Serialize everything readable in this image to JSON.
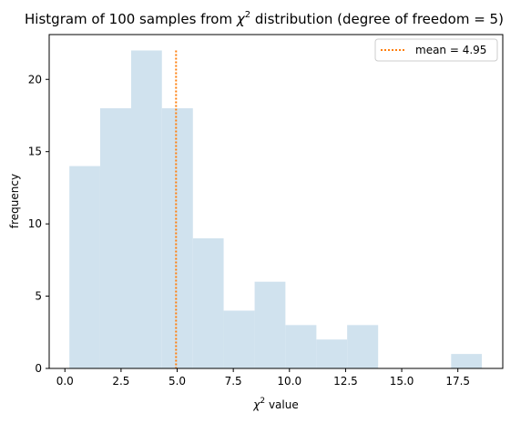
{
  "chart_data": {
    "type": "bar",
    "title_prefix": "Histgram of 100 samples from ",
    "title_symbol": "χ",
    "title_sup": "2",
    "title_suffix": " distribution (degree of freedom = 5)",
    "xlabel_symbol": "χ",
    "xlabel_sup": "2",
    "xlabel_suffix": " value",
    "ylabel": "frequency",
    "xlim": [
      -0.7,
      19.5
    ],
    "ylim": [
      0,
      23.1
    ],
    "xticks": [
      0.0,
      2.5,
      5.0,
      7.5,
      10.0,
      12.5,
      15.0,
      17.5
    ],
    "xtick_labels": [
      "0.0",
      "2.5",
      "5.0",
      "7.5",
      "10.0",
      "12.5",
      "15.0",
      "17.5"
    ],
    "yticks": [
      0,
      5,
      10,
      15,
      20
    ],
    "ytick_labels": [
      "0",
      "5",
      "10",
      "15",
      "20"
    ],
    "bins": [
      {
        "x0": 0.2,
        "x1": 1.57,
        "count": 14
      },
      {
        "x0": 1.57,
        "x1": 2.95,
        "count": 18
      },
      {
        "x0": 2.95,
        "x1": 4.32,
        "count": 22
      },
      {
        "x0": 4.32,
        "x1": 5.7,
        "count": 18
      },
      {
        "x0": 5.7,
        "x1": 7.07,
        "count": 9
      },
      {
        "x0": 7.07,
        "x1": 8.45,
        "count": 4
      },
      {
        "x0": 8.45,
        "x1": 9.82,
        "count": 6
      },
      {
        "x0": 9.82,
        "x1": 11.2,
        "count": 3
      },
      {
        "x0": 11.2,
        "x1": 12.57,
        "count": 2
      },
      {
        "x0": 12.57,
        "x1": 13.95,
        "count": 3
      },
      {
        "x0": 13.95,
        "x1": 15.32,
        "count": 0
      },
      {
        "x0": 15.32,
        "x1": 16.7,
        "count": 0
      },
      {
        "x0": 16.7,
        "x1": 17.2,
        "count": 0
      },
      {
        "x0": 17.2,
        "x1": 18.57,
        "count": 1
      }
    ],
    "bar_color": "#d0e2ee",
    "mean": 4.95,
    "mean_line_top": 22,
    "mean_color": "#ff7f0e",
    "legend_label": "mean = 4.95",
    "legend_position": "top-right",
    "grid": false
  }
}
